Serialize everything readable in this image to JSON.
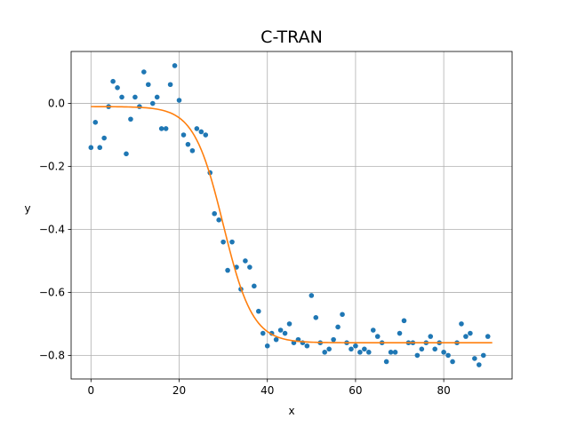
{
  "chart_data": {
    "type": "scatter",
    "title": "C-TRAN",
    "xlabel": "x",
    "ylabel": "y",
    "xlim": [
      -4.5,
      95.5
    ],
    "ylim": [
      -0.875,
      0.165
    ],
    "xticks": [
      0,
      20,
      40,
      60,
      80
    ],
    "yticks": [
      0.0,
      -0.2,
      -0.4,
      -0.6,
      -0.8
    ],
    "ytick_labels": [
      "0.0",
      "−0.2",
      "−0.4",
      "−0.6",
      "−0.8"
    ],
    "grid": true,
    "series": [
      {
        "kind": "scatter",
        "color": "#1f77b4",
        "x": [
          0,
          1,
          2,
          3,
          4,
          5,
          6,
          7,
          8,
          9,
          10,
          11,
          12,
          13,
          14,
          15,
          16,
          17,
          18,
          19,
          20,
          21,
          22,
          23,
          24,
          25,
          26,
          27,
          28,
          29,
          30,
          31,
          32,
          33,
          34,
          35,
          36,
          37,
          38,
          39,
          40,
          41,
          42,
          43,
          44,
          45,
          46,
          47,
          48,
          49,
          50,
          51,
          52,
          53,
          54,
          55,
          56,
          57,
          58,
          59,
          60,
          61,
          62,
          63,
          64,
          65,
          66,
          67,
          68,
          69,
          70,
          71,
          72,
          73,
          74,
          75,
          76,
          77,
          78,
          79,
          80,
          81,
          82,
          83,
          84,
          85,
          86,
          87,
          88,
          89,
          90
        ],
        "y": [
          -0.14,
          -0.06,
          -0.14,
          -0.11,
          -0.01,
          0.07,
          0.05,
          0.02,
          -0.16,
          -0.05,
          0.02,
          -0.01,
          0.1,
          0.06,
          0.0,
          0.02,
          -0.08,
          -0.08,
          0.06,
          0.12,
          0.01,
          -0.1,
          -0.13,
          -0.15,
          -0.08,
          -0.09,
          -0.1,
          -0.22,
          -0.35,
          -0.37,
          -0.44,
          -0.53,
          -0.44,
          -0.52,
          -0.59,
          -0.5,
          -0.52,
          -0.58,
          -0.66,
          -0.73,
          -0.77,
          -0.73,
          -0.75,
          -0.72,
          -0.73,
          -0.7,
          -0.76,
          -0.75,
          -0.76,
          -0.77,
          -0.61,
          -0.68,
          -0.76,
          -0.79,
          -0.78,
          -0.75,
          -0.71,
          -0.67,
          -0.76,
          -0.78,
          -0.77,
          -0.79,
          -0.78,
          -0.79,
          -0.72,
          -0.74,
          -0.76,
          -0.82,
          -0.79,
          -0.79,
          -0.73,
          -0.69,
          -0.76,
          -0.76,
          -0.8,
          -0.78,
          -0.76,
          -0.74,
          -0.78,
          -0.76,
          -0.79,
          -0.8,
          -0.82,
          -0.76,
          -0.7,
          -0.74,
          -0.73,
          -0.81,
          -0.83,
          -0.8,
          -0.74
        ]
      },
      {
        "kind": "line",
        "color": "#ff7f0e",
        "model": "logistic",
        "x_range": [
          0,
          91
        ],
        "top": -0.01,
        "bottom": -0.76,
        "midpoint": 30,
        "rate": 0.3
      }
    ]
  }
}
